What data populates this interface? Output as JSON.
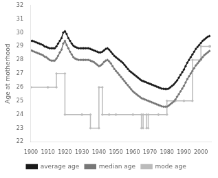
{
  "chart_data": {
    "type": "line",
    "ylabel": "Age at motherhood",
    "xlim": [
      1900,
      2006
    ],
    "ylim": [
      22,
      32
    ],
    "xticks": [
      1900,
      1910,
      1920,
      1930,
      1940,
      1950,
      1960,
      1970,
      1980,
      1990,
      2000
    ],
    "yticks": [
      22,
      23,
      24,
      25,
      26,
      27,
      28,
      29,
      30,
      31,
      32
    ],
    "grid": false,
    "legend": "bottom",
    "series": [
      {
        "name": "average age",
        "color": "#1a1a1a",
        "marker": "diamond",
        "x": [
          1900,
          1901,
          1902,
          1903,
          1904,
          1905,
          1906,
          1907,
          1908,
          1909,
          1910,
          1911,
          1912,
          1913,
          1914,
          1915,
          1916,
          1917,
          1918,
          1919,
          1920,
          1921,
          1922,
          1923,
          1924,
          1925,
          1926,
          1927,
          1928,
          1929,
          1930,
          1931,
          1932,
          1933,
          1934,
          1935,
          1936,
          1937,
          1938,
          1939,
          1940,
          1941,
          1942,
          1943,
          1944,
          1945,
          1946,
          1947,
          1948,
          1949,
          1950,
          1951,
          1952,
          1953,
          1954,
          1955,
          1956,
          1957,
          1958,
          1959,
          1960,
          1961,
          1962,
          1963,
          1964,
          1965,
          1966,
          1967,
          1968,
          1969,
          1970,
          1971,
          1972,
          1973,
          1974,
          1975,
          1976,
          1977,
          1978,
          1979,
          1980,
          1981,
          1982,
          1983,
          1984,
          1985,
          1986,
          1987,
          1988,
          1989,
          1990,
          1991,
          1992,
          1993,
          1994,
          1995,
          1996,
          1997,
          1998,
          1999,
          2000,
          2001,
          2002,
          2003,
          2004,
          2005
        ],
        "values": [
          29.4,
          29.4,
          29.35,
          29.3,
          29.25,
          29.2,
          29.15,
          29.1,
          29.0,
          28.95,
          28.9,
          28.85,
          28.85,
          28.85,
          28.85,
          29.0,
          29.2,
          29.4,
          29.6,
          30.0,
          30.1,
          29.9,
          29.6,
          29.4,
          29.2,
          29.05,
          28.95,
          28.9,
          28.85,
          28.85,
          28.85,
          28.85,
          28.85,
          28.85,
          28.85,
          28.8,
          28.75,
          28.7,
          28.65,
          28.6,
          28.55,
          28.55,
          28.6,
          28.7,
          28.8,
          28.85,
          28.75,
          28.6,
          28.45,
          28.3,
          28.2,
          28.1,
          28.0,
          27.9,
          27.8,
          27.65,
          27.5,
          27.35,
          27.2,
          27.1,
          27.0,
          26.9,
          26.8,
          26.7,
          26.6,
          26.5,
          26.45,
          26.4,
          26.35,
          26.3,
          26.25,
          26.2,
          26.15,
          26.1,
          26.05,
          26.0,
          25.95,
          25.9,
          25.88,
          25.87,
          25.87,
          25.9,
          26.0,
          26.1,
          26.2,
          26.35,
          26.5,
          26.7,
          26.9,
          27.1,
          27.3,
          27.55,
          27.8,
          28.0,
          28.2,
          28.4,
          28.6,
          28.8,
          28.95,
          29.1,
          29.25,
          29.4,
          29.5,
          29.6,
          29.7,
          29.75
        ]
      },
      {
        "name": "median age",
        "color": "#777777",
        "marker": "diamond",
        "x": [
          1900,
          1901,
          1902,
          1903,
          1904,
          1905,
          1906,
          1907,
          1908,
          1909,
          1910,
          1911,
          1912,
          1913,
          1914,
          1915,
          1916,
          1917,
          1918,
          1919,
          1920,
          1921,
          1922,
          1923,
          1924,
          1925,
          1926,
          1927,
          1928,
          1929,
          1930,
          1931,
          1932,
          1933,
          1934,
          1935,
          1936,
          1937,
          1938,
          1939,
          1940,
          1941,
          1942,
          1943,
          1944,
          1945,
          1946,
          1947,
          1948,
          1949,
          1950,
          1951,
          1952,
          1953,
          1954,
          1955,
          1956,
          1957,
          1958,
          1959,
          1960,
          1961,
          1962,
          1963,
          1964,
          1965,
          1966,
          1967,
          1968,
          1969,
          1970,
          1971,
          1972,
          1973,
          1974,
          1975,
          1976,
          1977,
          1978,
          1979,
          1980,
          1981,
          1982,
          1983,
          1984,
          1985,
          1986,
          1987,
          1988,
          1989,
          1990,
          1991,
          1992,
          1993,
          1994,
          1995,
          1996,
          1997,
          1998,
          1999,
          2000,
          2001,
          2002,
          2003,
          2004,
          2005
        ],
        "values": [
          28.7,
          28.65,
          28.6,
          28.55,
          28.5,
          28.45,
          28.4,
          28.35,
          28.25,
          28.2,
          28.1,
          28.0,
          27.95,
          27.95,
          27.95,
          28.1,
          28.3,
          28.55,
          28.75,
          29.2,
          29.4,
          29.1,
          28.85,
          28.6,
          28.4,
          28.2,
          28.1,
          28.05,
          28.0,
          28.0,
          28.0,
          28.0,
          28.0,
          28.0,
          28.0,
          27.95,
          27.9,
          27.85,
          27.75,
          27.65,
          27.55,
          27.6,
          27.7,
          27.85,
          27.95,
          28.0,
          27.9,
          27.75,
          27.55,
          27.35,
          27.2,
          27.05,
          26.9,
          26.75,
          26.6,
          26.45,
          26.3,
          26.15,
          26.0,
          25.85,
          25.7,
          25.6,
          25.5,
          25.4,
          25.3,
          25.2,
          25.15,
          25.1,
          25.05,
          25.0,
          24.95,
          24.9,
          24.85,
          24.8,
          24.75,
          24.7,
          24.65,
          24.6,
          24.58,
          24.58,
          24.58,
          24.65,
          24.75,
          24.85,
          24.95,
          25.1,
          25.3,
          25.5,
          25.7,
          25.9,
          26.1,
          26.35,
          26.6,
          26.8,
          27.0,
          27.2,
          27.4,
          27.6,
          27.75,
          27.9,
          28.05,
          28.2,
          28.35,
          28.45,
          28.55,
          28.65
        ]
      },
      {
        "name": "mode age",
        "color": "#bbbbbb",
        "marker": "diamond",
        "x": [
          1900,
          1910,
          1910,
          1915,
          1915,
          1920,
          1920,
          1930,
          1930,
          1935,
          1935,
          1940,
          1940,
          1942,
          1942,
          1946,
          1946,
          1950,
          1950,
          1960,
          1960,
          1965,
          1965,
          1966,
          1966,
          1968,
          1968,
          1969,
          1969,
          1975,
          1975,
          1980,
          1980,
          1985,
          1985,
          1990,
          1990,
          1995,
          1995,
          2000,
          2000,
          2005,
          2005,
          2006
        ],
        "values": [
          26,
          26,
          26,
          26,
          27,
          27,
          24,
          24,
          24,
          24,
          23,
          23,
          26,
          26,
          24,
          24,
          24,
          24,
          24,
          24,
          24,
          24,
          23,
          23,
          24,
          24,
          23,
          23,
          24,
          24,
          24,
          24,
          25,
          25,
          25,
          25,
          25,
          25,
          28,
          28,
          29,
          29,
          29,
          29
        ]
      }
    ]
  }
}
